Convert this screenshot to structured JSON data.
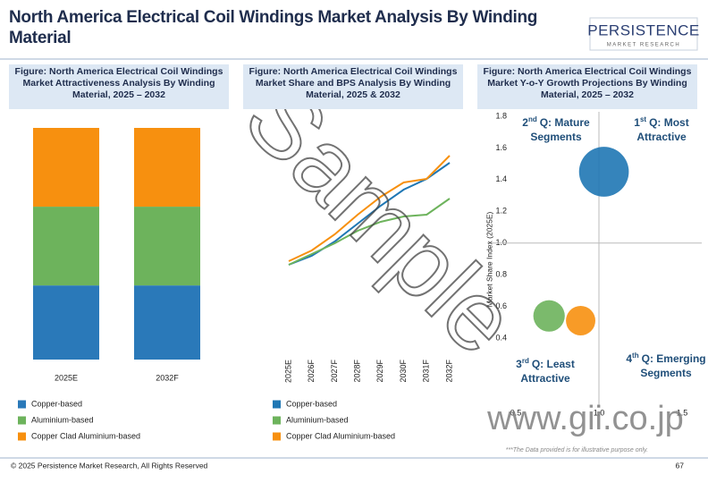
{
  "header": {
    "title": "North America Electrical Coil Windings Market Analysis By Winding Material",
    "logo": "PERSISTENCE",
    "logo_sub": "MARKET RESEARCH"
  },
  "chart_data": [
    {
      "type": "bar",
      "stacked": true,
      "title": "Figure: North America Electrical Coil Windings Market Attractiveness Analysis By Winding Material, 2025 – 2032",
      "categories": [
        "2025E",
        "2032F"
      ],
      "ylim": [
        0,
        100
      ],
      "series": [
        {
          "name": "Copper-based",
          "color": "#2a79b9",
          "values": [
            32,
            32
          ]
        },
        {
          "name": "Aluminium-based",
          "color": "#6db35c",
          "values": [
            34,
            34
          ]
        },
        {
          "name": "Copper Clad Aluminium-based",
          "color": "#f7900f",
          "values": [
            34,
            34
          ]
        }
      ]
    },
    {
      "type": "line",
      "title": "Figure: North America Electrical Coil Windings Market Share and BPS Analysis By Winding Material, 2025 & 2032",
      "categories": [
        "2025E",
        "2026F",
        "2027F",
        "2028F",
        "2029F",
        "2030F",
        "2031F",
        "2032F"
      ],
      "ylim": [
        0,
        1
      ],
      "series": [
        {
          "name": "Copper-based",
          "color": "#1f77b4",
          "values": [
            0.17,
            0.22,
            0.3,
            0.4,
            0.5,
            0.59,
            0.65,
            0.74
          ]
        },
        {
          "name": "Aluminium-based",
          "color": "#6db35c",
          "values": [
            0.17,
            0.23,
            0.29,
            0.36,
            0.41,
            0.44,
            0.45,
            0.54
          ]
        },
        {
          "name": "Copper Clad Aluminium-based",
          "color": "#f7900f",
          "values": [
            0.19,
            0.25,
            0.34,
            0.45,
            0.55,
            0.63,
            0.65,
            0.78
          ]
        }
      ]
    },
    {
      "type": "scatter",
      "title": "Figure: North America Electrical Coil Windings Market Y-o-Y Growth Projections By Winding Material, 2025 – 2032",
      "y_label": "Market Share Index (2025E)",
      "xlim": [
        0.5,
        1.5
      ],
      "xticks": [
        0.5,
        {
          "value": 1,
          "label": "1.0"
        },
        1.5
      ],
      "ylim": [
        0.4,
        1.8
      ],
      "yticks": [
        0.4,
        0.6,
        0.8,
        {
          "value": 1,
          "label": "1.0"
        },
        1.2,
        1.4,
        1.6,
        1.8
      ],
      "points": [
        {
          "x": 1.03,
          "y": 1.45,
          "size": 40,
          "color": "#1f77b4"
        },
        {
          "x": 0.7,
          "y": 0.54,
          "size": 16,
          "color": "#6db35c"
        },
        {
          "x": 0.89,
          "y": 0.51,
          "size": 14,
          "color": "#f7900f"
        }
      ],
      "quadrants": [
        {
          "ordinal": "2",
          "suffix": "nd",
          "lines": [
            "Q: Mature",
            "Segments"
          ]
        },
        {
          "ordinal": "1",
          "suffix": "st",
          "lines": [
            "Q: Most",
            "Attractive"
          ]
        },
        {
          "ordinal": "3",
          "suffix": "rd",
          "lines": [
            "Q: Least",
            "Attractive"
          ]
        },
        {
          "ordinal": "4",
          "suffix": "th",
          "lines": [
            "Q: Emerging",
            "Segments"
          ]
        }
      ],
      "note": "***The Data provided is for illustrative purpose only."
    }
  ],
  "footer": {
    "copyright": "© 2025 Persistence Market Research, All Rights Reserved",
    "page": "67"
  },
  "watermark": {
    "text": "Sample",
    "site": "www.gii.co.jp"
  }
}
